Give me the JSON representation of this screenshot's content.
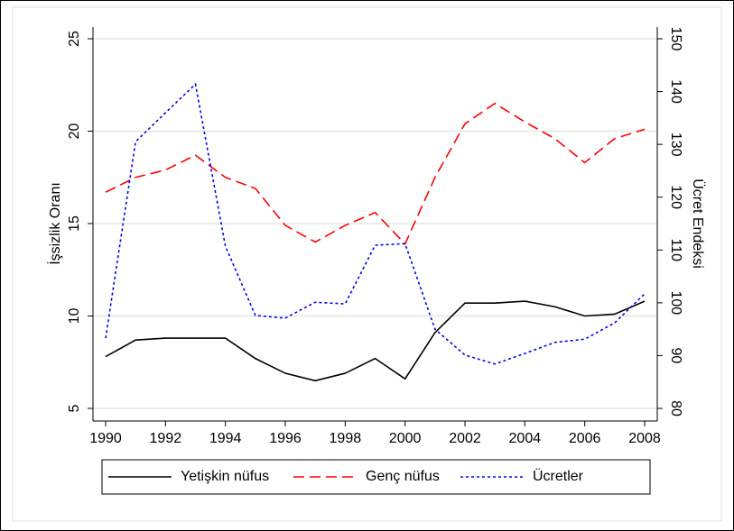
{
  "chart_data": {
    "type": "line",
    "x": [
      1990,
      1991,
      1992,
      1993,
      1994,
      1995,
      1996,
      1997,
      1998,
      1999,
      2000,
      2001,
      2002,
      2003,
      2004,
      2005,
      2006,
      2007,
      2008
    ],
    "xlim": [
      1990,
      2008
    ],
    "xticks": [
      1990,
      1992,
      1994,
      1996,
      1998,
      2000,
      2002,
      2004,
      2006,
      2008
    ],
    "ylabel": "İşsizlik Oranı",
    "ylim": [
      5,
      25
    ],
    "yticks": [
      5,
      10,
      15,
      20,
      25
    ],
    "y2label": "Ücret Endeksi",
    "y2lim": [
      80,
      150
    ],
    "y2ticks": [
      80,
      90,
      100,
      110,
      120,
      130,
      140,
      150
    ],
    "grid": true,
    "legend": "bottom",
    "series": [
      {
        "name": "Yetişkin nüfus",
        "color": "#000000",
        "style": "solid",
        "values": [
          7.8,
          8.7,
          8.8,
          8.8,
          8.8,
          7.7,
          6.9,
          6.5,
          6.9,
          7.7,
          6.6,
          9.1,
          10.7,
          10.7,
          10.8,
          10.5,
          10.0,
          10.1,
          10.8
        ]
      },
      {
        "name": "Genç nüfus",
        "color": "#ff0000",
        "style": "dashed",
        "values": [
          16.7,
          17.5,
          17.9,
          18.7,
          17.5,
          16.9,
          14.9,
          14.0,
          14.9,
          15.6,
          13.9,
          17.5,
          20.4,
          21.5,
          20.5,
          19.6,
          18.3,
          19.6,
          20.1
        ]
      },
      {
        "name": "Ücretler",
        "color": "#0000ff",
        "style": "dotted",
        "axis": "y2",
        "values": [
          93.3,
          130.5,
          136.0,
          141.4,
          110.7,
          97.6,
          97.1,
          100.1,
          99.8,
          110.9,
          111.2,
          95.0,
          90.1,
          88.4,
          90.4,
          92.5,
          93.1,
          96.2,
          101.7
        ]
      }
    ]
  }
}
